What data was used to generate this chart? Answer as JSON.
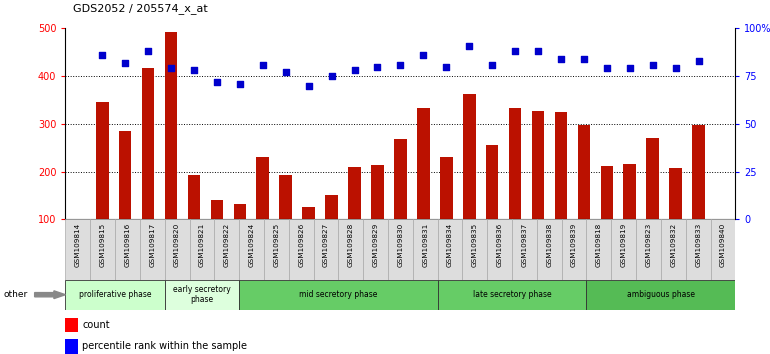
{
  "title": "GDS2052 / 205574_x_at",
  "samples": [
    "GSM109814",
    "GSM109815",
    "GSM109816",
    "GSM109817",
    "GSM109820",
    "GSM109821",
    "GSM109822",
    "GSM109824",
    "GSM109825",
    "GSM109826",
    "GSM109827",
    "GSM109828",
    "GSM109829",
    "GSM109830",
    "GSM109831",
    "GSM109834",
    "GSM109835",
    "GSM109836",
    "GSM109837",
    "GSM109838",
    "GSM109839",
    "GSM109818",
    "GSM109819",
    "GSM109823",
    "GSM109832",
    "GSM109833",
    "GSM109840"
  ],
  "counts": [
    345,
    285,
    418,
    492,
    193,
    140,
    133,
    230,
    193,
    127,
    152,
    210,
    215,
    268,
    333,
    230,
    362,
    255,
    333,
    328,
    325,
    298,
    212,
    217,
    270,
    207,
    298
  ],
  "percentiles": [
    86,
    82,
    88,
    79,
    78,
    72,
    71,
    81,
    77,
    70,
    75,
    78,
    80,
    81,
    86,
    80,
    91,
    81,
    88,
    88,
    84,
    84,
    79,
    79,
    81,
    79,
    83
  ],
  "phases": [
    {
      "name": "proliferative phase",
      "start": 0,
      "end": 3,
      "color": "#ccffcc"
    },
    {
      "name": "early secretory\nphase",
      "start": 4,
      "end": 6,
      "color": "#ddffdd"
    },
    {
      "name": "mid secretory phase",
      "start": 7,
      "end": 14,
      "color": "#66cc66"
    },
    {
      "name": "late secretory phase",
      "start": 15,
      "end": 20,
      "color": "#66cc66"
    },
    {
      "name": "ambiguous phase",
      "start": 21,
      "end": 26,
      "color": "#55bb55"
    }
  ],
  "bar_color": "#bb1100",
  "dot_color": "#0000cc",
  "ylim_left": [
    100,
    500
  ],
  "ylim_right": [
    0,
    100
  ],
  "yticks_left": [
    100,
    200,
    300,
    400,
    500
  ],
  "yticks_right": [
    0,
    25,
    50,
    75,
    100
  ],
  "yticklabels_right": [
    "0",
    "25",
    "50",
    "75",
    "100%"
  ],
  "gridlines": [
    200,
    300,
    400
  ],
  "fig_width": 7.7,
  "fig_height": 3.54
}
